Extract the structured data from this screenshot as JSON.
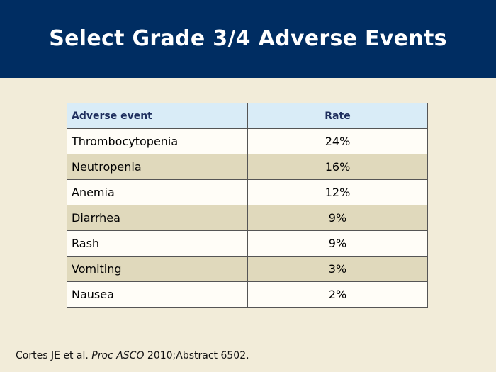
{
  "slide": {
    "title": "Select Grade 3/4 Adverse Events",
    "colors": {
      "header_background": "#002d62",
      "slide_background": "#f2ecd9",
      "table_header_background": "#d9ecf7",
      "row_alternate_background": "#e0d9bc"
    }
  },
  "table": {
    "headers": {
      "event": "Adverse event",
      "rate": "Rate"
    },
    "rows": [
      {
        "event": "Thrombocytopenia",
        "rate": "24%"
      },
      {
        "event": "Neutropenia",
        "rate": "16%"
      },
      {
        "event": "Anemia",
        "rate": "12%"
      },
      {
        "event": "Diarrhea",
        "rate": "9%"
      },
      {
        "event": "Rash",
        "rate": "9%"
      },
      {
        "event": "Vomiting",
        "rate": "3%"
      },
      {
        "event": "Nausea",
        "rate": "2%"
      }
    ]
  },
  "citation": {
    "authors": "Cortes JE et al. ",
    "journal": "Proc ASCO",
    "details": " 2010;Abstract 6502."
  }
}
